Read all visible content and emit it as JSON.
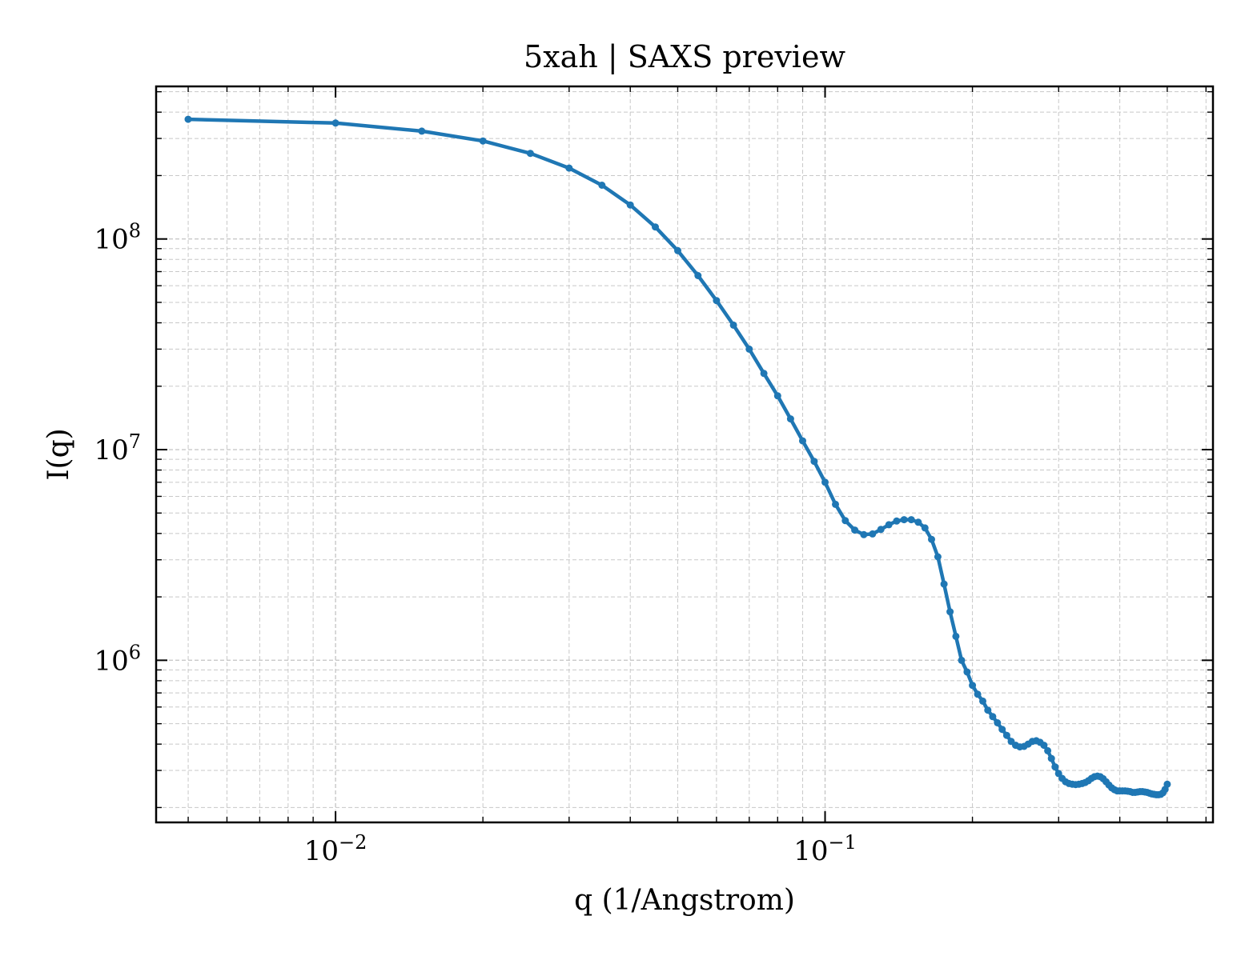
{
  "chart_data": {
    "type": "line",
    "title": "5xah | SAXS preview",
    "xlabel": "q (1/Angstrom)",
    "ylabel": "I(q)",
    "xscale": "log",
    "yscale": "log",
    "xlim": [
      0.0043,
      0.62
    ],
    "ylim": [
      170000,
      530000000
    ],
    "grid": true,
    "legend": "none",
    "x_ticks": [
      {
        "value": 0.01,
        "label_base": "10",
        "label_exp": "−2"
      },
      {
        "value": 0.1,
        "label_base": "10",
        "label_exp": "−1"
      }
    ],
    "y_ticks": [
      {
        "value": 1000000,
        "label_base": "10",
        "label_exp": "6"
      },
      {
        "value": 10000000,
        "label_base": "10",
        "label_exp": "7"
      },
      {
        "value": 100000000,
        "label_base": "10",
        "label_exp": "8"
      }
    ],
    "series": [
      {
        "color": "#1f77b4",
        "marker": "circle",
        "x": [
          0.005,
          0.01,
          0.015,
          0.02,
          0.025,
          0.03,
          0.035,
          0.04,
          0.045,
          0.05,
          0.055,
          0.06,
          0.065,
          0.07,
          0.075,
          0.08,
          0.085,
          0.09,
          0.095,
          0.1,
          0.105,
          0.11,
          0.115,
          0.12,
          0.125,
          0.13,
          0.135,
          0.14,
          0.145,
          0.15,
          0.155,
          0.16,
          0.165,
          0.17,
          0.175,
          0.18,
          0.185,
          0.19,
          0.195,
          0.2,
          0.205,
          0.21,
          0.215,
          0.22,
          0.225,
          0.23,
          0.235,
          0.24,
          0.245,
          0.25,
          0.255,
          0.26,
          0.265,
          0.27,
          0.275,
          0.28,
          0.285,
          0.29,
          0.295,
          0.3,
          0.305,
          0.31,
          0.315,
          0.32,
          0.325,
          0.33,
          0.335,
          0.34,
          0.345,
          0.35,
          0.355,
          0.36,
          0.365,
          0.37,
          0.375,
          0.38,
          0.385,
          0.39,
          0.395,
          0.4,
          0.405,
          0.41,
          0.415,
          0.42,
          0.425,
          0.43,
          0.435,
          0.44,
          0.445,
          0.45,
          0.455,
          0.46,
          0.465,
          0.47,
          0.475,
          0.48,
          0.485,
          0.49,
          0.495,
          0.5
        ],
        "y": [
          370000000,
          355000000,
          325000000,
          292000000,
          255000000,
          217000000,
          180000000,
          145000000,
          114000000,
          88000000,
          67000000,
          51000000,
          39000000,
          30000000,
          23000000,
          18000000,
          14000000,
          11000000,
          8800000,
          7000000,
          5500000,
          4600000,
          4150000,
          3950000,
          3980000,
          4180000,
          4400000,
          4580000,
          4650000,
          4650000,
          4520000,
          4250000,
          3750000,
          3100000,
          2300000,
          1700000,
          1300000,
          1000000,
          880000,
          760000,
          690000,
          640000,
          580000,
          540000,
          505000,
          470000,
          440000,
          412000,
          395000,
          388000,
          390000,
          400000,
          412000,
          415000,
          408000,
          395000,
          372000,
          342000,
          312000,
          290000,
          275000,
          265000,
          260000,
          258000,
          257000,
          258000,
          260000,
          263000,
          268000,
          275000,
          280000,
          282000,
          280000,
          274000,
          265000,
          256000,
          248000,
          243000,
          240000,
          240000,
          240000,
          240000,
          239000,
          238000,
          236000,
          236000,
          237000,
          238000,
          238000,
          237000,
          236000,
          234000,
          232000,
          231000,
          230000,
          230000,
          231000,
          235000,
          244000,
          258000
        ]
      }
    ]
  }
}
